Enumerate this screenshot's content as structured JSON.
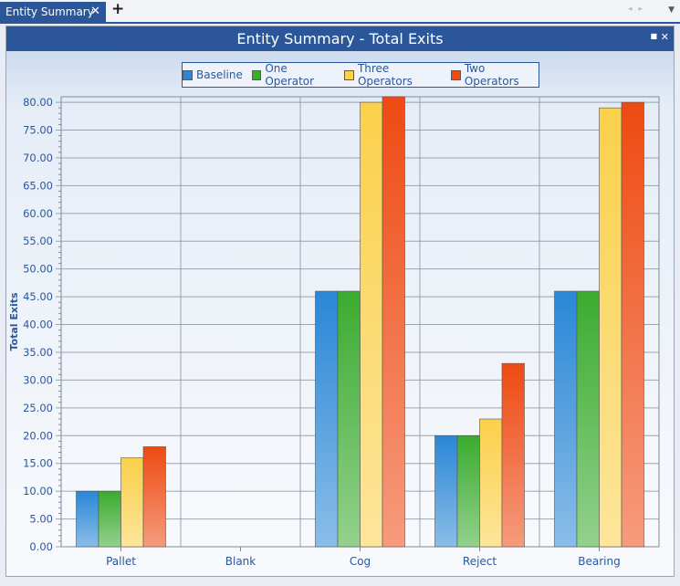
{
  "tabs": [
    {
      "label": "Entity Summary"
    }
  ],
  "icons": {
    "tab_close": "close-icon",
    "add_tab": "plus-icon",
    "panel_restore": "restore-icon",
    "panel_close": "close-icon"
  },
  "panel": {
    "title": "Entity Summary - Total Exits"
  },
  "colors": {
    "header": "#2b579a",
    "grid": "#7f8a9a",
    "tick_text": "#2b579a"
  },
  "chart_data": {
    "type": "bar",
    "title": "Entity Summary - Total Exits",
    "xlabel": "",
    "ylabel": "Total Exits",
    "ylim": [
      0,
      81
    ],
    "yticks": [
      "0.00",
      "5.00",
      "10.00",
      "15.00",
      "20.00",
      "25.00",
      "30.00",
      "35.00",
      "40.00",
      "45.00",
      "50.00",
      "55.00",
      "60.00",
      "65.00",
      "70.00",
      "75.00",
      "80.00"
    ],
    "categories": [
      "Pallet",
      "Blank",
      "Cog",
      "Reject",
      "Bearing"
    ],
    "series": [
      {
        "name": "Baseline",
        "color": "#2a87d6",
        "values": [
          10,
          0,
          46,
          20,
          46
        ]
      },
      {
        "name": "One Operator",
        "color": "#3aab2f",
        "values": [
          10,
          0,
          46,
          20,
          46
        ]
      },
      {
        "name": "Three Operators",
        "color": "#fbd04a",
        "values": [
          16,
          0,
          80,
          23,
          79
        ]
      },
      {
        "name": "Two Operators",
        "color": "#ee4a12",
        "values": [
          18,
          0,
          81,
          33,
          80
        ]
      }
    ],
    "grid": true,
    "legend": "top-center"
  }
}
